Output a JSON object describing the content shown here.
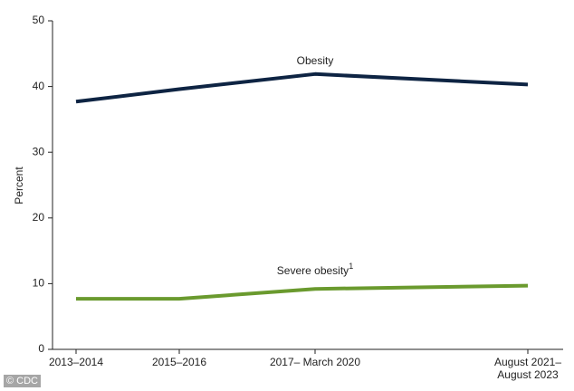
{
  "chart_data": {
    "type": "line",
    "y_label": "Percent",
    "categories": [
      "2013–2014",
      "2015–2016",
      "2017– March 2020",
      "August 2021–\nAugust 2023"
    ],
    "series": [
      {
        "name": "Obesity",
        "color": "#0e2443",
        "values": [
          37.7,
          39.6,
          41.9,
          40.3
        ]
      },
      {
        "name": "Severe obesity",
        "footnote": "1",
        "color": "#6a9a2e",
        "values": [
          7.7,
          7.7,
          9.2,
          9.7
        ]
      }
    ],
    "ylim": [
      0,
      50
    ],
    "yticks": [
      0,
      10,
      20,
      30,
      40,
      50
    ],
    "credit": "© CDC"
  }
}
